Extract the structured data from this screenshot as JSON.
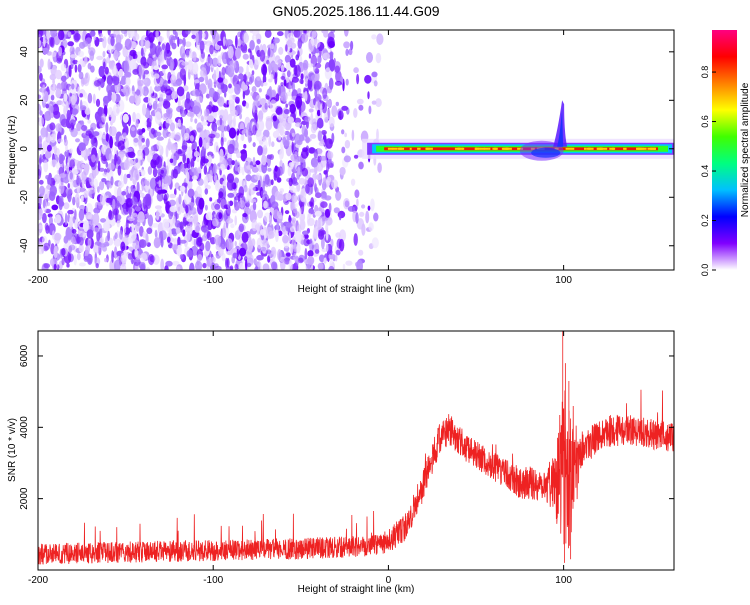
{
  "title": "GN05.2025.186.11.44.G09",
  "chart_data": [
    {
      "type": "heatmap",
      "title": "GN05.2025.186.11.44.G09",
      "xlabel": "Height of straight line (km)",
      "ylabel": "Frequency (Hz)",
      "xlim": [
        -200,
        163
      ],
      "ylim": [
        -50,
        49
      ],
      "xticks": [
        -200,
        -100,
        0,
        100
      ],
      "yticks": [
        -40,
        -20,
        0,
        20,
        40
      ],
      "colorbar": {
        "label": "Normalized spectral amplitude",
        "range": [
          0,
          0.97
        ],
        "ticks": [
          0.0,
          0.2,
          0.4,
          0.6,
          0.8
        ],
        "tick_labels": [
          "0.0",
          "0.2",
          "0.4",
          "0.6",
          "0.8"
        ],
        "colors": [
          "#ffffff",
          "#8000ff",
          "#0000ff",
          "#00c0ff",
          "#00ff80",
          "#40ff00",
          "#ffff00",
          "#ff8000",
          "#ff0000",
          "#ff0080"
        ]
      },
      "features": {
        "noise_region_x": [
          -200,
          -15
        ],
        "signal_line_x": [
          -15,
          163
        ],
        "signal_center_hz": 0,
        "disturbance_x": [
          75,
          100
        ],
        "spike_peak_hz": 20
      }
    },
    {
      "type": "line",
      "xlabel": "Height of straight line (km)",
      "ylabel": "SNR (10 * v/v)",
      "xlim": [
        -200,
        163
      ],
      "ylim": [
        0,
        6700
      ],
      "xticks": [
        -200,
        -100,
        0,
        100
      ],
      "yticks": [
        2000,
        4000,
        6000
      ],
      "color": "#ee2222",
      "series": [
        {
          "x": [
            -200,
            -150,
            -100,
            -50,
            -20,
            0,
            10,
            20,
            30,
            35,
            45,
            60,
            75,
            90,
            95,
            100,
            105,
            110,
            125,
            140,
            163
          ],
          "y": [
            450,
            500,
            550,
            600,
            650,
            800,
            1200,
            2400,
            3800,
            3950,
            3400,
            2900,
            2450,
            2400,
            2500,
            2800,
            2900,
            3400,
            3900,
            3900,
            3700
          ],
          "noise": [
            300,
            300,
            300,
            300,
            300,
            350,
            400,
            450,
            450,
            450,
            400,
            400,
            450,
            500,
            900,
            2600,
            2000,
            500,
            450,
            450,
            400
          ]
        }
      ]
    }
  ]
}
